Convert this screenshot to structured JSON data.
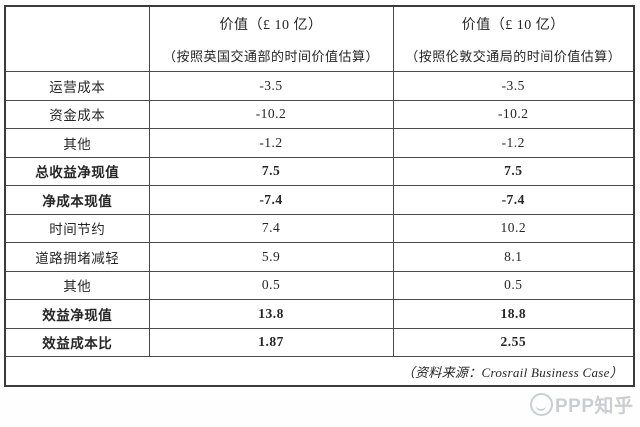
{
  "table": {
    "header": {
      "corner": "",
      "dft": {
        "title": "价值（£ 10 亿）",
        "subtitle": "（按照英国交通部的时间价值估算）"
      },
      "tfl": {
        "title": "价值（£ 10 亿）",
        "subtitle": "（按照伦敦交通局的时间价值估算）"
      }
    },
    "rows": [
      {
        "label": "运营成本",
        "dft": "-3.5",
        "tfl": "-3.5",
        "bold": false
      },
      {
        "label": "资金成本",
        "dft": "-10.2",
        "tfl": "-10.2",
        "bold": false
      },
      {
        "label": "其他",
        "dft": "-1.2",
        "tfl": "-1.2",
        "bold": false
      },
      {
        "label": "总收益净现值",
        "dft": "7.5",
        "tfl": "7.5",
        "bold": true
      },
      {
        "label": "净成本现值",
        "dft": "-7.4",
        "tfl": "-7.4",
        "bold": true
      },
      {
        "label": "时间节约",
        "dft": "7.4",
        "tfl": "10.2",
        "bold": false
      },
      {
        "label": "道路拥堵减轻",
        "dft": "5.9",
        "tfl": "8.1",
        "bold": false
      },
      {
        "label": "其他",
        "dft": "0.5",
        "tfl": "0.5",
        "bold": false
      },
      {
        "label": "效益净现值",
        "dft": "13.8",
        "tfl": "18.8",
        "bold": true
      },
      {
        "label": "效益成本比",
        "dft": "1.87",
        "tfl": "2.55",
        "bold": true
      }
    ],
    "source_note": "（资料来源：Crosrail Business Case）"
  },
  "watermark": {
    "text": "PPP知乎"
  },
  "colors": {
    "outer_border": "#3b3b3b",
    "grid_line": "#4a4a4a",
    "text": "#262626",
    "watermark": "#c6cad0",
    "background": "#ffffff"
  }
}
